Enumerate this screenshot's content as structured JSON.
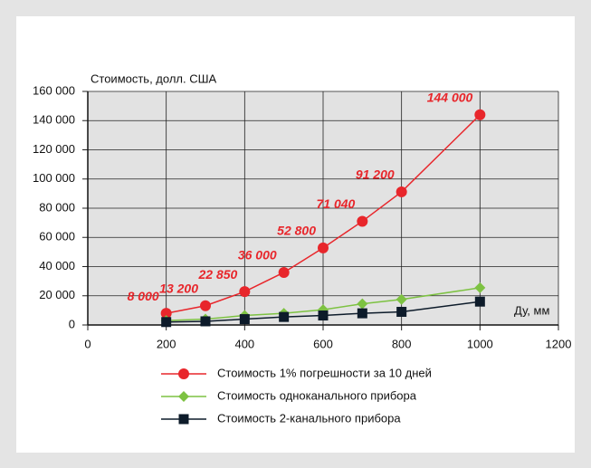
{
  "chart_data": {
    "type": "line",
    "y_label": "Стоимость, долл. США",
    "x_label": "Ду, мм",
    "xlim": [
      0,
      1200
    ],
    "xticks": [
      0,
      200,
      400,
      600,
      800,
      1000,
      1200
    ],
    "ylim": [
      0,
      160000
    ],
    "yticks": [
      {
        "value": 0,
        "label": "0"
      },
      {
        "value": 20000,
        "label": "20 000"
      },
      {
        "value": 40000,
        "label": "40 000"
      },
      {
        "value": 60000,
        "label": "60 000"
      },
      {
        "value": 80000,
        "label": "80 000"
      },
      {
        "value": 100000,
        "label": "100 000"
      },
      {
        "value": 120000,
        "label": "120 000"
      },
      {
        "value": 140000,
        "label": "140 000"
      },
      {
        "value": 160000,
        "label": "160 000"
      }
    ],
    "grid": true,
    "legend": "bottom",
    "x": [
      200,
      300,
      400,
      500,
      600,
      700,
      800,
      1000
    ],
    "series": [
      {
        "name": "Стоимость 1% погрешности за 10 дней",
        "color": "#e8262b",
        "marker": "circle",
        "values": [
          8000,
          13200,
          22850,
          36000,
          52800,
          71040,
          91200,
          144000
        ],
        "value_labels": [
          "8 000",
          "13 200",
          "22 850",
          "36 000",
          "52 800",
          "71 040",
          "91 200",
          "144 000"
        ]
      },
      {
        "name": "Стоимость одноканального прибора",
        "color": "#7dc242",
        "marker": "diamond",
        "values": [
          3000,
          4000,
          6500,
          8000,
          10500,
          14500,
          17500,
          25500
        ]
      },
      {
        "name": "Стоимость 2-канального прибора",
        "color": "#0d1b2a",
        "marker": "square",
        "values": [
          2000,
          2500,
          4000,
          5500,
          6500,
          8000,
          9000,
          16000
        ]
      }
    ]
  }
}
